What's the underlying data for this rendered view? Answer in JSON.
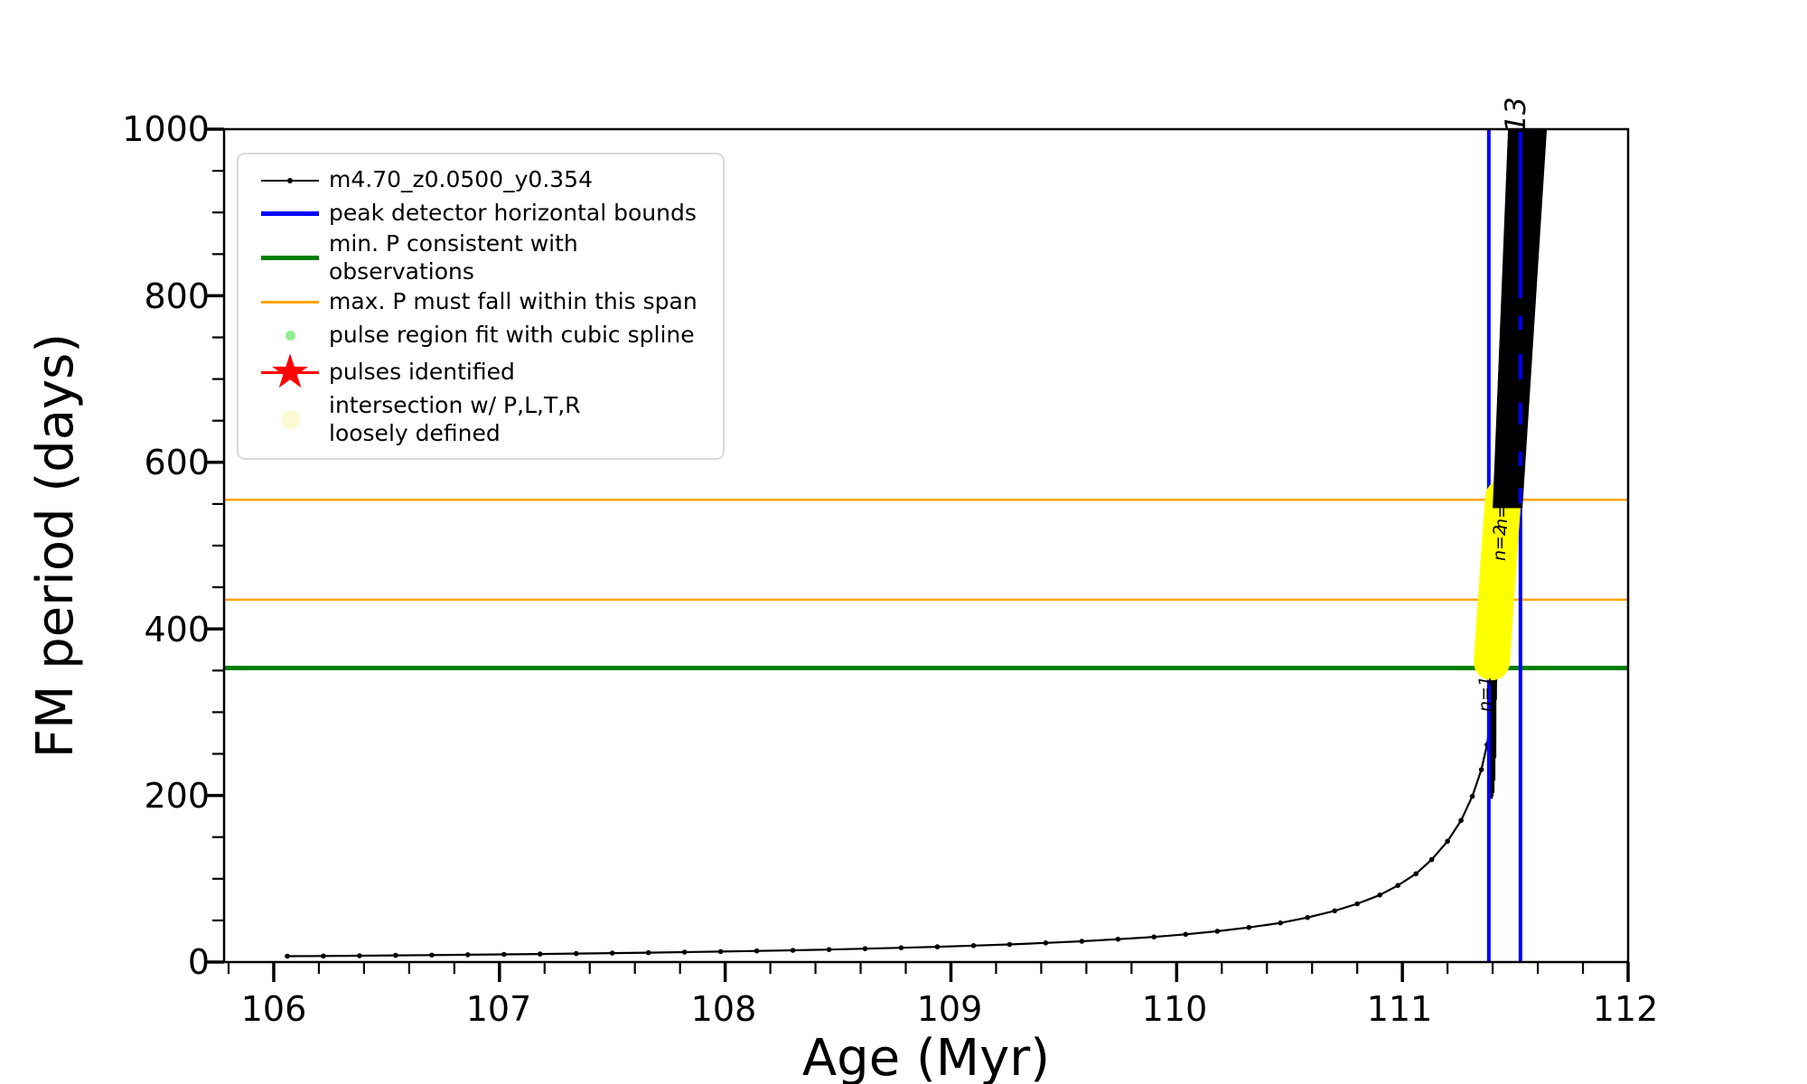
{
  "figure": {
    "background": "#ffffff",
    "xlabel": "Age (Myr)",
    "ylabel": "FM period (days)"
  },
  "legend": {
    "entries": [
      {
        "marker": "line-with-dot",
        "color": "#000000",
        "label": "m4.70_z0.0500_y0.354"
      },
      {
        "marker": "thick-line",
        "color": "#0000ff",
        "label": "peak detector horizontal bounds"
      },
      {
        "marker": "thick-line",
        "color": "#008000",
        "label": "min. P consistent with observations"
      },
      {
        "marker": "thin-line",
        "color": "#ffa500",
        "label": "max. P must fall within this span"
      },
      {
        "marker": "small-dot",
        "color": "#90ee90",
        "label": "pulse region fit with cubic spline"
      },
      {
        "marker": "star-on-line",
        "color": "#ff0000",
        "label": "pulses identified"
      },
      {
        "marker": "large-dot",
        "color": "#fafad2",
        "label": "intersection w/ P,L,T,R",
        "label2": "loosely defined"
      }
    ]
  },
  "chart_data": {
    "type": "line",
    "title": "",
    "xlabel": "Age (Myr)",
    "ylabel": "FM period (days)",
    "xlim": [
      105.78,
      112.0
    ],
    "ylim": [
      0,
      1000
    ],
    "x_ticks": [
      106,
      107,
      108,
      109,
      110,
      111,
      112
    ],
    "y_ticks": [
      0,
      200,
      400,
      600,
      800,
      1000
    ],
    "x_tick_labels": [
      "106",
      "107",
      "108",
      "109",
      "110",
      "111",
      "112"
    ],
    "y_tick_labels": [
      "0",
      "200",
      "400",
      "600",
      "800",
      "1000"
    ],
    "x_minor_step": 0.2,
    "y_minor_step": 50,
    "grid": false,
    "legend_position": "upper left",
    "series": [
      {
        "name": "m4.70_z0.0500_y0.354",
        "color": "#000000",
        "marker": "point",
        "points": [
          [
            106.06,
            7
          ],
          [
            106.22,
            7.3
          ],
          [
            106.38,
            7.6
          ],
          [
            106.54,
            8
          ],
          [
            106.7,
            8.4
          ],
          [
            106.86,
            8.8
          ],
          [
            107.02,
            9.2
          ],
          [
            107.18,
            9.7
          ],
          [
            107.34,
            10.2
          ],
          [
            107.5,
            10.7
          ],
          [
            107.66,
            11.3
          ],
          [
            107.82,
            11.9
          ],
          [
            107.98,
            12.6
          ],
          [
            108.14,
            13.3
          ],
          [
            108.3,
            14.1
          ],
          [
            108.46,
            15
          ],
          [
            108.62,
            16
          ],
          [
            108.78,
            17.1
          ],
          [
            108.94,
            18.3
          ],
          [
            109.1,
            19.7
          ],
          [
            109.26,
            21.2
          ],
          [
            109.42,
            23
          ],
          [
            109.58,
            25
          ],
          [
            109.74,
            27.4
          ],
          [
            109.9,
            30.2
          ],
          [
            110.04,
            33.3
          ],
          [
            110.18,
            37
          ],
          [
            110.32,
            41.5
          ],
          [
            110.46,
            47
          ],
          [
            110.58,
            53.5
          ],
          [
            110.7,
            61.5
          ],
          [
            110.8,
            70
          ],
          [
            110.9,
            80.5
          ],
          [
            110.98,
            92
          ],
          [
            111.06,
            106
          ],
          [
            111.13,
            123
          ],
          [
            111.2,
            145
          ],
          [
            111.26,
            170
          ],
          [
            111.31,
            199
          ],
          [
            111.35,
            231
          ],
          [
            111.375,
            261
          ],
          [
            111.388,
            287
          ],
          [
            111.394,
            307
          ]
        ]
      },
      {
        "name": "rapid pulse oscillation near peak",
        "color": "#000000",
        "marker": "none",
        "points": [
          [
            111.394,
            307
          ],
          [
            111.3945,
            235
          ],
          [
            111.395,
            196
          ],
          [
            111.3958,
            268
          ],
          [
            111.3965,
            341
          ],
          [
            111.3972,
            255
          ],
          [
            111.398,
            199
          ],
          [
            111.399,
            305
          ],
          [
            111.4,
            346
          ],
          [
            111.401,
            252
          ],
          [
            111.402,
            203
          ],
          [
            111.403,
            322
          ],
          [
            111.404,
            350
          ],
          [
            111.405,
            262
          ],
          [
            111.406,
            218
          ],
          [
            111.407,
            334
          ],
          [
            111.408,
            353
          ],
          [
            111.409,
            285
          ],
          [
            111.41,
            245
          ],
          [
            111.411,
            342
          ],
          [
            111.412,
            356
          ],
          [
            111.413,
            315
          ],
          [
            111.414,
            359
          ],
          [
            111.4145,
            337
          ],
          [
            111.415,
            361
          ]
        ]
      }
    ],
    "pulse_band": {
      "comment": "dense black band of unresolved pulse oscillations",
      "color": "#000000",
      "polygon": [
        [
          111.4,
          545
        ],
        [
          111.468,
          1000
        ],
        [
          111.64,
          1000
        ],
        [
          111.532,
          545
        ]
      ]
    },
    "intersection_band": {
      "label": "intersection w/ P,L,T,R loosely defined",
      "color": "#ffff00",
      "stroke_px": 40,
      "path": [
        [
          111.447,
          558
        ],
        [
          111.42,
          460
        ],
        [
          111.396,
          360
        ]
      ]
    },
    "vlines": {
      "label": "peak detector horizontal bounds",
      "color": "#0000ff",
      "x": [
        111.383,
        111.523
      ]
    },
    "hlines": [
      {
        "label": "min. P consistent with observations",
        "color": "#008000",
        "y": 353,
        "width": 5
      },
      {
        "label": "max. P must fall within this span",
        "color": "#ffa500",
        "y": 555,
        "width": 2.5
      },
      {
        "label": "max. P must fall within this span",
        "color": "#ffa500",
        "y": 435,
        "width": 2.5
      }
    ],
    "annotations": [
      {
        "text": "13",
        "age": 111.53,
        "period": 1015
      },
      {
        "text": "n=",
        "age": 111.46,
        "period": 540
      },
      {
        "text": "n=2",
        "age": 111.45,
        "period": 500
      },
      {
        "text": "n=1",
        "age": 111.39,
        "period": 320
      }
    ]
  }
}
